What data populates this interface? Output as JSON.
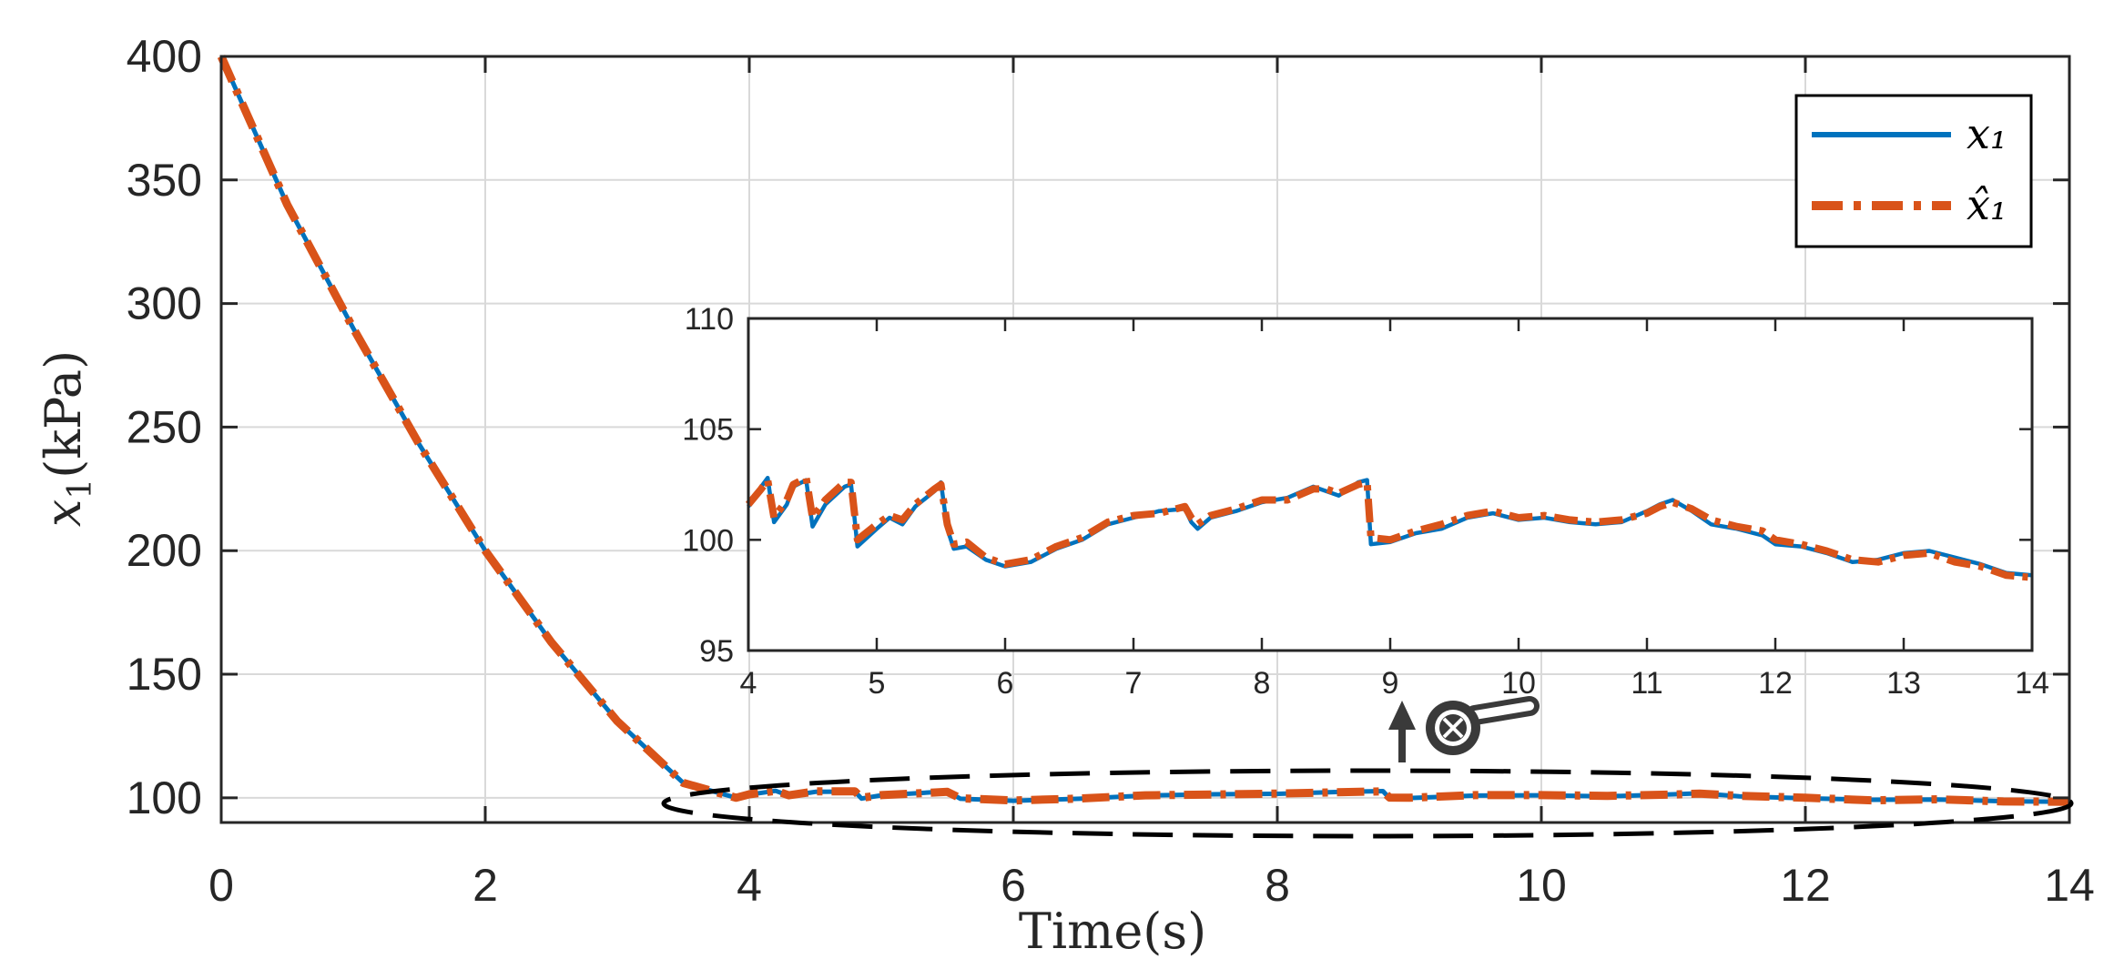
{
  "chart_data": [
    {
      "type": "line",
      "name": "main",
      "xlabel": "Time(s)",
      "ylabel": "x_1(kPa)",
      "xlim": [
        0,
        14
      ],
      "ylim": [
        90,
        400
      ],
      "xticks": [
        "0",
        "2",
        "4",
        "6",
        "8",
        "10",
        "12",
        "14"
      ],
      "yticks": [
        "100",
        "150",
        "200",
        "250",
        "300",
        "350",
        "400"
      ],
      "grid": true,
      "legend_position": "top-right",
      "series": [
        {
          "name": "x_1",
          "style": "solid",
          "color": "#0072BD",
          "x": [
            0,
            0.5,
            1,
            1.5,
            2,
            2.5,
            3,
            3.5,
            3.9,
            4.0,
            4.2,
            4.3,
            4.5,
            4.8,
            4.85,
            5.0,
            5.5,
            5.6,
            6.0,
            6.5,
            7.0,
            7.5,
            8.0,
            8.5,
            8.8,
            8.85,
            9.0,
            9.5,
            10.0,
            10.5,
            11.0,
            11.2,
            11.5,
            12.0,
            12.5,
            13.0,
            13.5,
            14.0
          ],
          "y": [
            400,
            340,
            290,
            243,
            200,
            163,
            131,
            106,
            100,
            101.3,
            102.8,
            100.8,
            102.4,
            102.5,
            99.7,
            101.0,
            102.6,
            99.6,
            98.8,
            99.6,
            100.9,
            101.4,
            101.6,
            102.4,
            102.7,
            99.8,
            99.9,
            100.9,
            101.0,
            100.6,
            101.4,
            101.8,
            100.6,
            99.8,
            99.2,
            99.3,
            98.6,
            98.4
          ]
        },
        {
          "name": "x̂_1",
          "style": "dash-dot",
          "color": "#D95319",
          "x": [
            0,
            0.5,
            1,
            1.5,
            2,
            2.5,
            3,
            3.5,
            3.9,
            4.0,
            4.2,
            4.3,
            4.5,
            4.8,
            4.85,
            5.0,
            5.5,
            5.6,
            6.0,
            6.5,
            7.0,
            7.5,
            8.0,
            8.5,
            8.8,
            8.85,
            9.0,
            9.5,
            10.0,
            10.5,
            11.0,
            11.2,
            11.5,
            12.0,
            12.5,
            13.0,
            13.5,
            14.0
          ],
          "y": [
            400,
            340,
            290,
            243,
            200,
            163,
            131,
            106,
            100,
            101.4,
            102.8,
            101.0,
            102.6,
            102.6,
            100.0,
            101.1,
            102.4,
            99.8,
            98.9,
            99.7,
            101.0,
            101.3,
            101.7,
            102.3,
            102.6,
            100.1,
            100.0,
            101.1,
            101.1,
            100.8,
            101.3,
            101.7,
            100.8,
            100.0,
            99.0,
            99.4,
            98.5,
            98.4
          ]
        }
      ]
    },
    {
      "type": "line",
      "name": "inset",
      "xlim": [
        4,
        14
      ],
      "ylim": [
        95,
        110
      ],
      "xticks": [
        "4",
        "5",
        "6",
        "7",
        "8",
        "9",
        "10",
        "11",
        "12",
        "13",
        "14"
      ],
      "yticks": [
        "95",
        "100",
        "105",
        "110"
      ],
      "grid": false,
      "series": [
        {
          "name": "x_1",
          "style": "solid",
          "color": "#0072BD",
          "x": [
            4.0,
            4.1,
            4.15,
            4.2,
            4.3,
            4.35,
            4.45,
            4.5,
            4.6,
            4.75,
            4.8,
            4.85,
            5.0,
            5.1,
            5.2,
            5.3,
            5.45,
            5.5,
            5.55,
            5.6,
            5.7,
            5.85,
            6.0,
            6.2,
            6.4,
            6.6,
            6.8,
            7.0,
            7.2,
            7.4,
            7.45,
            7.5,
            7.6,
            7.8,
            8.0,
            8.2,
            8.4,
            8.5,
            8.6,
            8.75,
            8.82,
            8.85,
            9.0,
            9.2,
            9.4,
            9.6,
            9.8,
            10.0,
            10.2,
            10.4,
            10.6,
            10.8,
            11.0,
            11.1,
            11.2,
            11.35,
            11.5,
            11.7,
            11.9,
            12.0,
            12.2,
            12.4,
            12.6,
            12.8,
            13.0,
            13.2,
            13.4,
            13.6,
            13.8,
            14.0
          ],
          "y": [
            101.5,
            102.4,
            102.8,
            100.8,
            101.6,
            102.4,
            102.7,
            100.6,
            101.6,
            102.4,
            102.5,
            99.7,
            100.5,
            101.0,
            100.7,
            101.5,
            102.2,
            102.6,
            100.5,
            99.6,
            99.7,
            99.1,
            98.8,
            99.0,
            99.6,
            100.0,
            100.7,
            101.0,
            101.3,
            101.4,
            100.8,
            100.5,
            101.0,
            101.3,
            101.7,
            101.9,
            102.4,
            102.2,
            102.0,
            102.6,
            102.7,
            99.8,
            99.9,
            100.3,
            100.5,
            101.0,
            101.2,
            100.9,
            101.0,
            100.8,
            100.7,
            100.8,
            101.3,
            101.6,
            101.8,
            101.3,
            100.7,
            100.5,
            100.2,
            99.8,
            99.7,
            99.4,
            99.0,
            99.1,
            99.4,
            99.5,
            99.2,
            98.9,
            98.5,
            98.4
          ]
        },
        {
          "name": "x̂_1",
          "style": "dash-dot",
          "color": "#D95319",
          "x": [
            4.0,
            4.1,
            4.15,
            4.2,
            4.3,
            4.35,
            4.45,
            4.5,
            4.6,
            4.75,
            4.8,
            4.85,
            5.0,
            5.1,
            5.2,
            5.3,
            5.45,
            5.5,
            5.55,
            5.6,
            5.7,
            5.85,
            6.0,
            6.2,
            6.4,
            6.6,
            6.8,
            7.0,
            7.2,
            7.4,
            7.45,
            7.5,
            7.6,
            7.8,
            8.0,
            8.2,
            8.4,
            8.5,
            8.6,
            8.75,
            8.82,
            8.85,
            9.0,
            9.2,
            9.4,
            9.6,
            9.8,
            10.0,
            10.2,
            10.4,
            10.6,
            10.8,
            11.0,
            11.1,
            11.2,
            11.35,
            11.5,
            11.7,
            11.9,
            12.0,
            12.2,
            12.4,
            12.6,
            12.8,
            13.0,
            13.2,
            13.4,
            13.6,
            13.8,
            14.0
          ],
          "y": [
            101.6,
            102.3,
            102.7,
            101.0,
            101.8,
            102.5,
            102.8,
            101.0,
            101.8,
            102.6,
            102.6,
            100.0,
            100.7,
            101.1,
            100.9,
            101.6,
            102.3,
            102.5,
            100.7,
            99.8,
            99.9,
            99.2,
            98.9,
            99.1,
            99.7,
            100.1,
            100.8,
            101.1,
            101.2,
            101.5,
            101.0,
            100.7,
            101.1,
            101.4,
            101.8,
            101.8,
            102.3,
            102.3,
            102.1,
            102.5,
            102.6,
            100.1,
            100.0,
            100.4,
            100.7,
            101.1,
            101.3,
            101.0,
            101.1,
            100.9,
            100.8,
            100.9,
            101.2,
            101.5,
            101.7,
            101.4,
            100.9,
            100.6,
            100.4,
            100.0,
            99.8,
            99.5,
            99.1,
            99.0,
            99.3,
            99.4,
            99.0,
            98.8,
            98.4,
            98.3
          ]
        }
      ]
    }
  ],
  "legend": {
    "entries": [
      {
        "label": "x₁",
        "style": "solid",
        "color": "#0072BD"
      },
      {
        "label": "x̂₁",
        "style": "dash-dot",
        "color": "#D95319"
      }
    ]
  },
  "annotation": {
    "zoom_icon": "magnifier-zoom-icon",
    "arrow": "up-arrow-icon",
    "region": "ellipse around x from 4 to 14, y ≈ 100"
  },
  "colors": {
    "axes": "#262626",
    "grid": "#d9d9d9",
    "blue": "#0072BD",
    "orange": "#D95319"
  }
}
